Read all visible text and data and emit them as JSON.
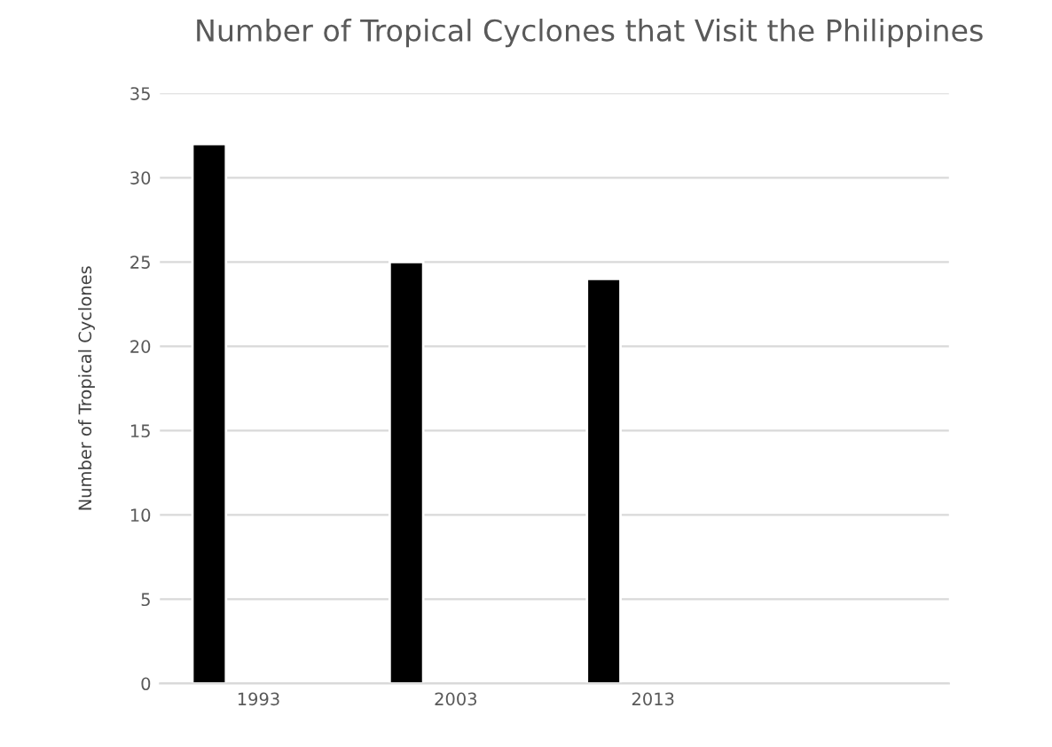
{
  "chart_data": {
    "type": "bar",
    "title": "Number of Tropical Cyclones that Visit the Philippines",
    "ylabel": "Number of Tropical Cyclones",
    "categories": [
      "1993",
      "2003",
      "2013",
      null
    ],
    "values": [
      32,
      25,
      24,
      null
    ],
    "color": "#000000",
    "ylim": [
      0,
      35
    ],
    "yticks": [
      0,
      5,
      10,
      15,
      20,
      25,
      30,
      35
    ],
    "grid": "y"
  }
}
